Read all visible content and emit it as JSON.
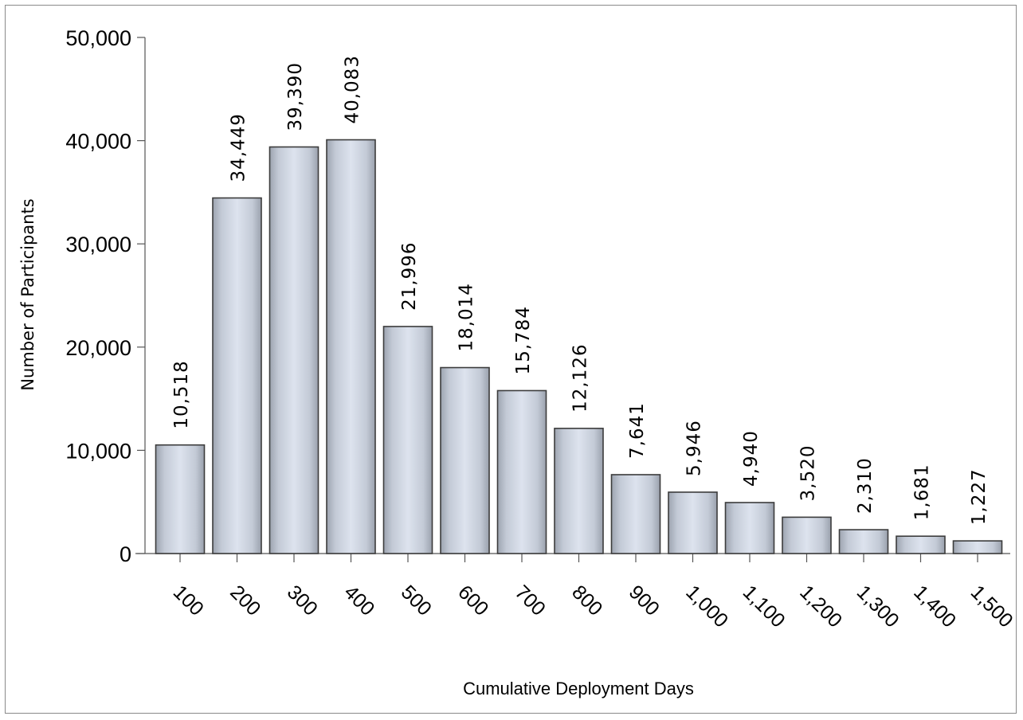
{
  "chart_data": {
    "type": "bar",
    "categories": [
      "100",
      "200",
      "300",
      "400",
      "500",
      "600",
      "700",
      "800",
      "900",
      "1,000",
      "1,100",
      "1,200",
      "1,300",
      "1,400",
      "1,500"
    ],
    "values": [
      10518,
      34449,
      39390,
      40083,
      21996,
      18014,
      15784,
      12126,
      7641,
      5946,
      4940,
      3520,
      2310,
      1681,
      1227
    ],
    "value_labels": [
      "10,518",
      "34,449",
      "39,390",
      "40,083",
      "21,996",
      "18,014",
      "15,784",
      "12,126",
      "7,641",
      "5,946",
      "4,940",
      "3,520",
      "2,310",
      "1,681",
      "1,227"
    ],
    "xlabel": "Cumulative Deployment Days",
    "ylabel": "Number of Participants",
    "ylim": [
      0,
      50000
    ],
    "yticks": [
      0,
      10000,
      20000,
      30000,
      40000,
      50000
    ],
    "ytick_labels": [
      "0",
      "10,000",
      "20,000",
      "30,000",
      "40,000",
      "50,000"
    ],
    "grid": false,
    "legend": "none",
    "bar_color": "#c9d0dc",
    "bar_edge_color": "#3c3c3c"
  }
}
